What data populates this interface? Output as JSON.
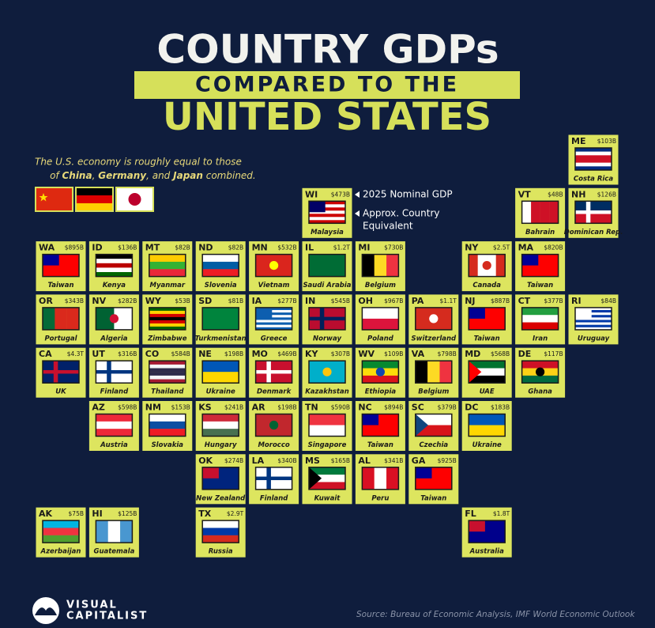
{
  "header": {
    "title_line1": "COUNTRY GDPs",
    "title_line2": "COMPARED TO THE",
    "title_line3": "UNITED STATES"
  },
  "intro": {
    "line1": "The U.S. economy is roughly equal to those",
    "line2": [
      "of ",
      "China",
      ", ",
      "Germany",
      ", and ",
      "Japan",
      " combined."
    ]
  },
  "legend": {
    "gdp": "2025 Nominal GDP",
    "country_line1": "Approx. Country",
    "country_line2": "Equivalent"
  },
  "tiles": [
    {
      "state": "ME",
      "gdp": "$103B",
      "country": "Costa Rica"
    },
    {
      "state": "WI",
      "gdp": "$473B",
      "country": "Malaysia"
    },
    {
      "state": "VT",
      "gdp": "$48B",
      "country": "Bahrain"
    },
    {
      "state": "NH",
      "gdp": "$126B",
      "country": "Dominican Rep."
    },
    {
      "state": "WA",
      "gdp": "$895B",
      "country": "Taiwan"
    },
    {
      "state": "ID",
      "gdp": "$136B",
      "country": "Kenya"
    },
    {
      "state": "MT",
      "gdp": "$82B",
      "country": "Myanmar"
    },
    {
      "state": "ND",
      "gdp": "$82B",
      "country": "Slovenia"
    },
    {
      "state": "MN",
      "gdp": "$532B",
      "country": "Vietnam"
    },
    {
      "state": "IL",
      "gdp": "$1.2T",
      "country": "Saudi Arabia"
    },
    {
      "state": "MI",
      "gdp": "$730B",
      "country": "Belgium"
    },
    {
      "state": "NY",
      "gdp": "$2.5T",
      "country": "Canada"
    },
    {
      "state": "MA",
      "gdp": "$820B",
      "country": "Taiwan"
    },
    {
      "state": "OR",
      "gdp": "$343B",
      "country": "Portugal"
    },
    {
      "state": "NV",
      "gdp": "$282B",
      "country": "Algeria"
    },
    {
      "state": "WY",
      "gdp": "$53B",
      "country": "Zimbabwe"
    },
    {
      "state": "SD",
      "gdp": "$81B",
      "country": "Turkmenistan"
    },
    {
      "state": "IA",
      "gdp": "$277B",
      "country": "Greece"
    },
    {
      "state": "IN",
      "gdp": "$545B",
      "country": "Norway"
    },
    {
      "state": "OH",
      "gdp": "$967B",
      "country": "Poland"
    },
    {
      "state": "PA",
      "gdp": "$1.1T",
      "country": "Switzerland"
    },
    {
      "state": "NJ",
      "gdp": "$887B",
      "country": "Taiwan"
    },
    {
      "state": "CT",
      "gdp": "$377B",
      "country": "Iran"
    },
    {
      "state": "RI",
      "gdp": "$84B",
      "country": "Uruguay"
    },
    {
      "state": "CA",
      "gdp": "$4.3T",
      "country": "UK"
    },
    {
      "state": "UT",
      "gdp": "$316B",
      "country": "Finland"
    },
    {
      "state": "CO",
      "gdp": "$584B",
      "country": "Thailand"
    },
    {
      "state": "NE",
      "gdp": "$198B",
      "country": "Ukraine"
    },
    {
      "state": "MO",
      "gdp": "$469B",
      "country": "Denmark"
    },
    {
      "state": "KY",
      "gdp": "$307B",
      "country": "Kazakhstan"
    },
    {
      "state": "WV",
      "gdp": "$109B",
      "country": "Ethiopia"
    },
    {
      "state": "VA",
      "gdp": "$798B",
      "country": "Belgium"
    },
    {
      "state": "MD",
      "gdp": "$568B",
      "country": "UAE"
    },
    {
      "state": "DE",
      "gdp": "$117B",
      "country": "Ghana"
    },
    {
      "state": "AZ",
      "gdp": "$598B",
      "country": "Austria"
    },
    {
      "state": "NM",
      "gdp": "$153B",
      "country": "Slovakia"
    },
    {
      "state": "KS",
      "gdp": "$241B",
      "country": "Hungary"
    },
    {
      "state": "AR",
      "gdp": "$198B",
      "country": "Morocco"
    },
    {
      "state": "TN",
      "gdp": "$590B",
      "country": "Singapore"
    },
    {
      "state": "NC",
      "gdp": "$894B",
      "country": "Taiwan"
    },
    {
      "state": "SC",
      "gdp": "$379B",
      "country": "Czechia"
    },
    {
      "state": "DC",
      "gdp": "$183B",
      "country": "Ukraine"
    },
    {
      "state": "OK",
      "gdp": "$274B",
      "country": "New Zealand"
    },
    {
      "state": "LA",
      "gdp": "$340B",
      "country": "Finland"
    },
    {
      "state": "MS",
      "gdp": "$165B",
      "country": "Kuwait"
    },
    {
      "state": "AL",
      "gdp": "$341B",
      "country": "Peru"
    },
    {
      "state": "GA",
      "gdp": "$925B",
      "country": "Taiwan"
    },
    {
      "state": "AK",
      "gdp": "$75B",
      "country": "Azerbaijan"
    },
    {
      "state": "HI",
      "gdp": "$125B",
      "country": "Guatemala"
    },
    {
      "state": "TX",
      "gdp": "$2.9T",
      "country": "Russia"
    },
    {
      "state": "FL",
      "gdp": "$1.8T",
      "country": "Australia"
    }
  ],
  "footer": {
    "brand_line1": "VISUAL",
    "brand_line2": "CAPITALIST",
    "source": "Source: Bureau of Economic Analysis, IMF World Economic Outlook"
  }
}
